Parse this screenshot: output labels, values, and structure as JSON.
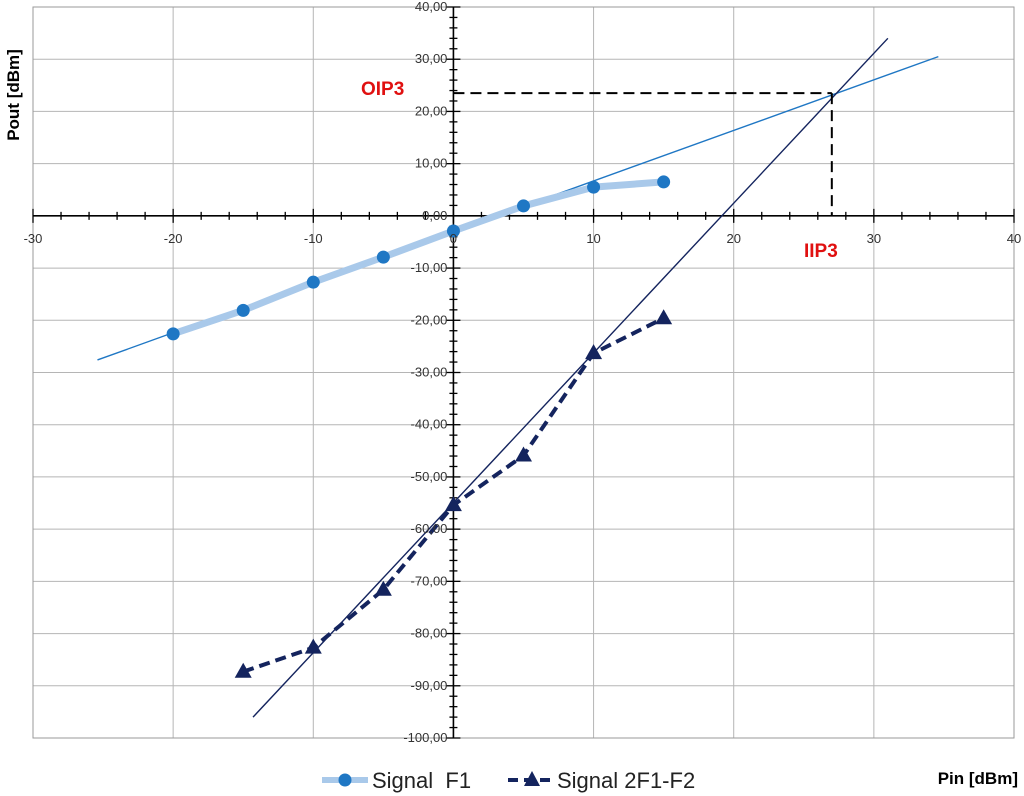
{
  "chart_data": {
    "type": "scatter",
    "xlabel": "Pin [dBm]",
    "ylabel": "Pout [dBm]",
    "xlim": [
      -30,
      40
    ],
    "ylim": [
      -100,
      40
    ],
    "x_ticks": [
      -30,
      -20,
      -10,
      0,
      10,
      20,
      30,
      40
    ],
    "x_tick_labels": [
      "-30",
      "-20",
      "-10",
      "0",
      "10",
      "20",
      "30",
      "40"
    ],
    "y_ticks": [
      40,
      30,
      20,
      10,
      0,
      -10,
      -20,
      -30,
      -40,
      -50,
      -60,
      -70,
      -80,
      -90,
      -100
    ],
    "y_tick_labels": [
      "40,00",
      "30,00",
      "20,00",
      "10,00",
      "0,00",
      "-10,00",
      "-20,00",
      "-30,00",
      "-40,00",
      "-50,00",
      "-60,00",
      "-70,00",
      "-80,00",
      "-90,00",
      "-100,00"
    ],
    "grid": true,
    "legend_position": "bottom",
    "series": [
      {
        "name": "Signal  F1",
        "x": [
          -20,
          -15,
          -10,
          -5,
          0,
          5,
          10,
          15
        ],
        "y": [
          -22.6,
          -18.1,
          -12.7,
          -7.9,
          -2.9,
          1.9,
          5.5,
          6.5
        ],
        "color": "#1f77c4",
        "marker": "circle"
      },
      {
        "name": "Signal 2F1-F2",
        "x": [
          -15,
          -10,
          -5,
          0,
          5,
          10,
          15
        ],
        "y": [
          -87.3,
          -82.7,
          -71.6,
          -55.4,
          -45.9,
          -26.3,
          -19.6
        ],
        "color": "#14245e",
        "marker": "triangle",
        "line_style": "dashed"
      }
    ],
    "trendlines": [
      {
        "series": "Signal  F1",
        "color": "#1f77c4",
        "x": [
          -25.4,
          34.6
        ],
        "y": [
          -27.6,
          30.5
        ]
      },
      {
        "series": "Signal 2F1-F2",
        "color": "#14245e",
        "x": [
          -14.3,
          31.0
        ],
        "y": [
          -96.0,
          34.0
        ]
      }
    ],
    "annotations": {
      "oip3": {
        "label": "OIP3",
        "value": 23.5,
        "color": "#e01010"
      },
      "iip3": {
        "label": "IIP3",
        "value": 27,
        "color": "#e01010"
      }
    }
  }
}
